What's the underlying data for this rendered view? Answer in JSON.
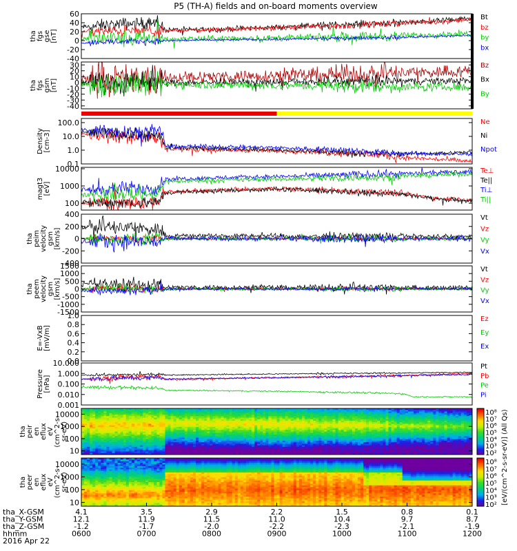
{
  "title": "P5 (TH-A) fields and on-board moments overview",
  "chart_data": [
    {
      "type": "line",
      "ylabel": [
        "tha",
        "fgs",
        "gse",
        "[nT]"
      ],
      "ylim": [
        -40,
        60
      ],
      "yticks": [
        60,
        40,
        20,
        0,
        -20,
        -40
      ],
      "series": [
        {
          "name": "Bt",
          "color": "#000000",
          "levels": [
            [
              0,
              30
            ],
            [
              0.12,
              38
            ],
            [
              0.2,
              38
            ],
            [
              0.215,
              24
            ],
            [
              0.35,
              25
            ],
            [
              0.5,
              30
            ],
            [
              0.65,
              35
            ],
            [
              0.8,
              40
            ],
            [
              0.9,
              44
            ],
            [
              1,
              50
            ]
          ],
          "noise": 9,
          "noise2": 3
        },
        {
          "name": "bz",
          "color": "#ff0000",
          "levels": [
            [
              0,
              20
            ],
            [
              0.12,
              22
            ],
            [
              0.2,
              20
            ],
            [
              0.215,
              22
            ],
            [
              0.5,
              28
            ],
            [
              0.65,
              33
            ],
            [
              0.8,
              38
            ],
            [
              0.9,
              42
            ],
            [
              1,
              47
            ]
          ],
          "noise": 7,
          "noise2": 3
        },
        {
          "name": "by",
          "color": "#00cc00",
          "levels": [
            [
              0,
              5
            ],
            [
              0.2,
              4
            ],
            [
              0.215,
              3
            ],
            [
              0.5,
              6
            ],
            [
              0.8,
              10
            ],
            [
              1,
              16
            ]
          ],
          "noise": 14,
          "noise2": 3
        },
        {
          "name": "bx",
          "color": "#0000ff",
          "levels": [
            [
              0,
              -5
            ],
            [
              0.05,
              -3
            ],
            [
              0.2,
              -1
            ],
            [
              0.215,
              0
            ],
            [
              0.5,
              3
            ],
            [
              0.8,
              7
            ],
            [
              1,
              12
            ]
          ],
          "noise": 5,
          "noise2": 1
        }
      ]
    },
    {
      "type": "line",
      "ylabel": [
        "tha",
        "fgs",
        "gsm",
        "[nT]"
      ],
      "ylim": [
        -45,
        35
      ],
      "yticks": [
        30,
        20,
        10,
        0,
        -10,
        -20,
        -30,
        -40
      ],
      "series": [
        {
          "name": "Bz",
          "color": "#aa0000",
          "levels": [
            [
              0,
              5
            ],
            [
              0.2,
              5
            ],
            [
              0.215,
              8
            ],
            [
              0.5,
              12
            ],
            [
              0.8,
              15
            ],
            [
              1,
              20
            ]
          ],
          "noise": 16,
          "noise2": 6
        },
        {
          "name": "Bx",
          "color": "#000000",
          "levels": [
            [
              0,
              0
            ],
            [
              0.2,
              0
            ],
            [
              0.215,
              0
            ],
            [
              0.5,
              0
            ],
            [
              0.8,
              2
            ],
            [
              1,
              3
            ]
          ],
          "noise": 14,
          "noise2": 2
        },
        {
          "name": "By",
          "color": "#00cc00",
          "levels": [
            [
              0,
              -3
            ],
            [
              0.2,
              -4
            ],
            [
              0.215,
              -3
            ],
            [
              0.5,
              -5
            ],
            [
              0.8,
              -7
            ],
            [
              1,
              -8
            ]
          ],
          "noise": 15,
          "noise2": 3
        }
      ]
    },
    {
      "type": "line",
      "scale": "log",
      "ylabel": [
        "Density",
        "[cm-3]"
      ],
      "ylim": [
        0.1,
        200
      ],
      "yticks": [
        "100.0",
        "10.0",
        "1.0",
        "0.1"
      ],
      "series": [
        {
          "name": "Ne",
          "color": "#ff0000",
          "levels": [
            [
              0,
              15
            ],
            [
              0.2,
              8
            ],
            [
              0.215,
              1.2
            ],
            [
              0.5,
              0.9
            ],
            [
              0.7,
              0.6
            ],
            [
              0.8,
              0.3
            ],
            [
              1,
              0.15
            ]
          ],
          "noise": 0.6,
          "noise2": 0.12
        },
        {
          "name": "Ni",
          "color": "#000000",
          "levels": [
            [
              0,
              20
            ],
            [
              0.2,
              10
            ],
            [
              0.215,
              1.5
            ],
            [
              0.5,
              1.0
            ],
            [
              0.7,
              0.6
            ],
            [
              0.8,
              0.5
            ],
            [
              1,
              0.7
            ]
          ],
          "noise": 0.5,
          "noise2": 0.08
        },
        {
          "name": "Npot",
          "color": "#0000ff",
          "levels": [
            [
              0,
              30
            ],
            [
              0.2,
              20
            ],
            [
              0.215,
              2.0
            ],
            [
              0.5,
              1.5
            ],
            [
              0.7,
              0.9
            ],
            [
              0.8,
              0.6
            ],
            [
              1,
              0.5
            ]
          ],
          "noise": 0.6,
          "noise2": 0.08
        }
      ]
    },
    {
      "type": "line",
      "scale": "log",
      "ylabel": [
        "magt3",
        "[eV]"
      ],
      "ylim": [
        40,
        12000
      ],
      "yticks": [
        "10000",
        "1000",
        "100"
      ],
      "series": [
        {
          "name": "Te⊥",
          "color": "#ff0000",
          "levels": [
            [
              0,
              100
            ],
            [
              0.2,
              100
            ],
            [
              0.215,
              450
            ],
            [
              0.5,
              700
            ],
            [
              0.7,
              500
            ],
            [
              0.8,
              400
            ],
            [
              0.9,
              200
            ],
            [
              1,
              160
            ]
          ],
          "noise": 0.4,
          "noise2": 0.1
        },
        {
          "name": "Te||",
          "color": "#000000",
          "levels": [
            [
              0,
              110
            ],
            [
              0.2,
              110
            ],
            [
              0.215,
              400
            ],
            [
              0.5,
              650
            ],
            [
              0.7,
              450
            ],
            [
              0.8,
              380
            ],
            [
              0.9,
              180
            ],
            [
              1,
              140
            ]
          ],
          "noise": 0.4,
          "noise2": 0.1
        },
        {
          "name": "Ti⊥",
          "color": "#0000ff",
          "levels": [
            [
              0,
              600
            ],
            [
              0.2,
              800
            ],
            [
              0.215,
              2500
            ],
            [
              0.5,
              3500
            ],
            [
              0.7,
              4500
            ],
            [
              0.8,
              5000
            ],
            [
              1,
              6500
            ]
          ],
          "noise": 0.5,
          "noise2": 0.08
        },
        {
          "name": "Ti||",
          "color": "#00cc00",
          "levels": [
            [
              0,
              300
            ],
            [
              0.2,
              400
            ],
            [
              0.215,
              1800
            ],
            [
              0.5,
              2500
            ],
            [
              0.7,
              3000
            ],
            [
              0.8,
              3500
            ],
            [
              1,
              5000
            ]
          ],
          "noise": 0.5,
          "noise2": 0.08
        }
      ]
    },
    {
      "type": "line",
      "ylabel": [
        "tha",
        "peim",
        "velocity",
        "gsm",
        "[km/s]"
      ],
      "ylim": [
        -400,
        400
      ],
      "yticks": [
        400,
        200,
        0,
        -200,
        -400
      ],
      "series": [
        {
          "name": "Vt",
          "color": "#000000",
          "levels": [
            [
              0,
              200
            ],
            [
              0.2,
              150
            ],
            [
              0.215,
              50
            ],
            [
              0.5,
              40
            ],
            [
              1,
              30
            ]
          ],
          "noise": 90,
          "noise2": 15
        },
        {
          "name": "Vz",
          "color": "#ff0000",
          "levels": [
            [
              0,
              0
            ],
            [
              1,
              0
            ]
          ],
          "noise": 40,
          "noise2": 8
        },
        {
          "name": "Vy",
          "color": "#00cc00",
          "levels": [
            [
              0,
              0
            ],
            [
              1,
              0
            ]
          ],
          "noise": 70,
          "noise2": 10
        },
        {
          "name": "Vx",
          "color": "#0000ff",
          "levels": [
            [
              0,
              -50
            ],
            [
              0.2,
              -50
            ],
            [
              0.215,
              0
            ],
            [
              1,
              0
            ]
          ],
          "noise": 100,
          "noise2": 10
        }
      ]
    },
    {
      "type": "line",
      "ylabel": [
        "tha",
        "peem",
        "velocity",
        "gsm",
        "[km/s]"
      ],
      "ylim": [
        -1500,
        1500
      ],
      "yticks": [
        1500,
        1000,
        500,
        0,
        -500,
        -1000,
        -1500
      ],
      "series": [
        {
          "name": "Vt",
          "color": "#000000",
          "levels": [
            [
              0,
              300
            ],
            [
              0.2,
              250
            ],
            [
              0.215,
              100
            ],
            [
              1,
              80
            ]
          ],
          "noise": 300,
          "noise2": 70
        },
        {
          "name": "Vz",
          "color": "#ff0000",
          "levels": [
            [
              0,
              0
            ],
            [
              1,
              0
            ]
          ],
          "noise": 150,
          "noise2": 30
        },
        {
          "name": "Vy",
          "color": "#00cc00",
          "levels": [
            [
              0,
              0
            ],
            [
              1,
              0
            ]
          ],
          "noise": 200,
          "noise2": 40
        },
        {
          "name": "Vx",
          "color": "#0000ff",
          "levels": [
            [
              0,
              -100
            ],
            [
              0.2,
              -100
            ],
            [
              0.215,
              0
            ],
            [
              1,
              0
            ]
          ],
          "noise": 200,
          "noise2": 30
        }
      ]
    },
    {
      "type": "line",
      "ylabel": [
        "E=-VxB",
        "[mV/m]"
      ],
      "ylim": [
        0,
        1
      ],
      "yticks": [
        "1.0",
        "0.8",
        "0.6",
        "0.4",
        "0.2",
        "0.0"
      ],
      "series": [
        {
          "name": "Ez",
          "color": "#ff0000",
          "levels": [],
          "noise": 0,
          "noise2": 0
        },
        {
          "name": "Ey",
          "color": "#00cc00",
          "levels": [],
          "noise": 0,
          "noise2": 0
        },
        {
          "name": "Ex",
          "color": "#0000ff",
          "levels": [],
          "noise": 0,
          "noise2": 0
        }
      ]
    },
    {
      "type": "line",
      "scale": "log",
      "ylabel": [
        "Pressure",
        "[nPa]"
      ],
      "ylim": [
        0.001,
        10
      ],
      "yticks": [
        "10.000",
        "1.000",
        "0.100",
        "0.010",
        "0.001"
      ],
      "series": [
        {
          "name": "Pt",
          "color": "#000000",
          "levels": [
            [
              0,
              0.7
            ],
            [
              0.2,
              0.8
            ],
            [
              0.215,
              0.7
            ],
            [
              0.5,
              0.9
            ],
            [
              0.8,
              1.1
            ],
            [
              1,
              1.3
            ]
          ],
          "noise": 0.15,
          "noise2": 0.04
        },
        {
          "name": "Pb",
          "color": "#ff0000",
          "levels": [
            [
              0,
              0.3
            ],
            [
              0.2,
              0.5
            ],
            [
              0.215,
              0.25
            ],
            [
              0.5,
              0.4
            ],
            [
              0.8,
              0.6
            ],
            [
              1,
              1.0
            ]
          ],
          "noise": 0.3,
          "noise2": 0.05
        },
        {
          "name": "Pe",
          "color": "#00cc00",
          "levels": [
            [
              0,
              0.05
            ],
            [
              0.2,
              0.04
            ],
            [
              0.215,
              0.025
            ],
            [
              0.5,
              0.02
            ],
            [
              0.7,
              0.015
            ],
            [
              0.82,
              0.012
            ],
            [
              0.85,
              0.006
            ],
            [
              1,
              0.006
            ]
          ],
          "noise": 0.2,
          "noise2": 0.04
        },
        {
          "name": "Pi",
          "color": "#0000ff",
          "levels": [
            [
              0,
              0.3
            ],
            [
              0.2,
              0.4
            ],
            [
              0.215,
              0.3
            ],
            [
              0.5,
              0.4
            ],
            [
              0.8,
              0.6
            ],
            [
              1,
              0.8
            ]
          ],
          "noise": 0.3,
          "noise2": 0.04
        }
      ]
    },
    {
      "type": "heatmap",
      "scale": "log",
      "ylabel": [
        "tha",
        "peir",
        "en",
        "eflux",
        "eV",
        "(cm^2-s-",
        "sr-eV)"
      ],
      "ylim": [
        5,
        30000
      ],
      "yticks": [
        "10000",
        "1000",
        "100",
        "10"
      ]
    },
    {
      "type": "heatmap",
      "scale": "log",
      "ylabel": [
        "tha",
        "peer",
        "en",
        "eflux",
        "eV",
        "(cm^2-s-",
        "sr-eV)"
      ],
      "ylim": [
        5,
        30000
      ],
      "yticks": [
        "10000",
        "1000",
        "100",
        "10"
      ]
    }
  ],
  "mode_bar": {
    "segments": [
      {
        "from": 0.0,
        "to": 0.5,
        "color": "#ee0000"
      },
      {
        "from": 0.5,
        "to": 1.0,
        "color": "#ffff00"
      }
    ]
  },
  "colorbar": {
    "label": "[eV/(cm^2-s-sr-eV)] (All Qs)",
    "top_ticks": [
      "10⁸",
      "10⁷",
      "10⁶",
      "10⁵",
      "10⁴",
      "10³",
      "10²"
    ],
    "bottom_ticks": [
      "10⁸",
      "10⁷",
      "10⁶",
      "10⁵",
      "10⁴",
      "10³",
      "10²"
    ]
  },
  "x_axis": {
    "rows": [
      {
        "label": "tha_X-GSM",
        "values": [
          "4.1",
          "3.5",
          "2.9",
          "2.2",
          "1.5",
          "0.8",
          "0.1"
        ]
      },
      {
        "label": "tha_Y-GSM",
        "values": [
          "12.1",
          "11.9",
          "11.5",
          "11.0",
          "10.4",
          "9.7",
          "8.7"
        ]
      },
      {
        "label": "tha_Z-GSM",
        "values": [
          "-1.2",
          "-1.7",
          "-2.0",
          "-2.2",
          "-2.3",
          "-2.1",
          "-1.9"
        ]
      },
      {
        "label": "hhmm",
        "values": [
          "0600",
          "0700",
          "0800",
          "0900",
          "1000",
          "1100",
          "1200"
        ]
      }
    ],
    "date": "2016 Apr 22"
  }
}
